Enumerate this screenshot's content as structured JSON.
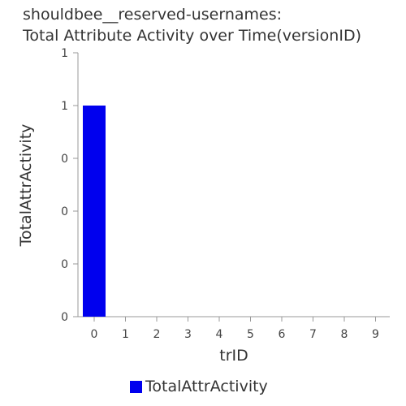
{
  "title_lines": [
    "shouldbee__reserved-usernames:",
    "Total Attribute Activity over Time(versionID)"
  ],
  "chart_data": {
    "type": "bar",
    "categories": [
      "0",
      "1",
      "2",
      "3",
      "4",
      "5",
      "6",
      "7",
      "8",
      "9"
    ],
    "series": [
      {
        "name": "TotalAttrActivity",
        "values": [
          1,
          0,
          0,
          0,
          0,
          0,
          0,
          0,
          0,
          0
        ],
        "color": "#0000ee"
      }
    ],
    "xlabel": "trID",
    "ylabel": "TotalAttrActivity",
    "ylim": [
      0,
      1.25
    ],
    "yticks": [
      0,
      0.25,
      0.5,
      0.75,
      1,
      1.25
    ],
    "ytick_labels": [
      "0",
      "0",
      "0",
      "0",
      "1",
      "1"
    ],
    "grid": false,
    "legend": "bottom-center"
  }
}
